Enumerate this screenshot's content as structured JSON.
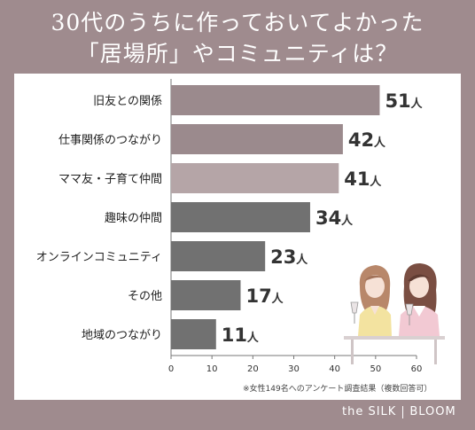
{
  "header": {
    "title_line1": "30代のうちに作っておいてよかった",
    "title_line2": "「居場所」やコミュニティは？"
  },
  "chart_data": {
    "type": "bar",
    "orientation": "horizontal",
    "categories": [
      "旧友との関係",
      "仕事関係のつながり",
      "ママ友・子育て仲間",
      "趣味の仲間",
      "オンラインコミュニティ",
      "その他",
      "地域のつながり"
    ],
    "values": [
      51,
      42,
      41,
      34,
      23,
      17,
      11
    ],
    "value_labels": [
      "51",
      "42",
      "41",
      "34",
      "23",
      "17",
      "11"
    ],
    "unit": "人",
    "bar_colors": [
      "#9b8a8d",
      "#9b8a8d",
      "#b5a5a7",
      "#717171",
      "#717171",
      "#717171",
      "#717171"
    ],
    "xlim": [
      0,
      60
    ],
    "xticks": [
      "0",
      "10",
      "20",
      "30",
      "40",
      "50",
      "60"
    ],
    "grid": false,
    "legend": "none",
    "footnote": "※女性149名へのアンケート調査結果（複数回答可）"
  },
  "brand": {
    "left": "the SILK",
    "right": "BLOOM"
  }
}
